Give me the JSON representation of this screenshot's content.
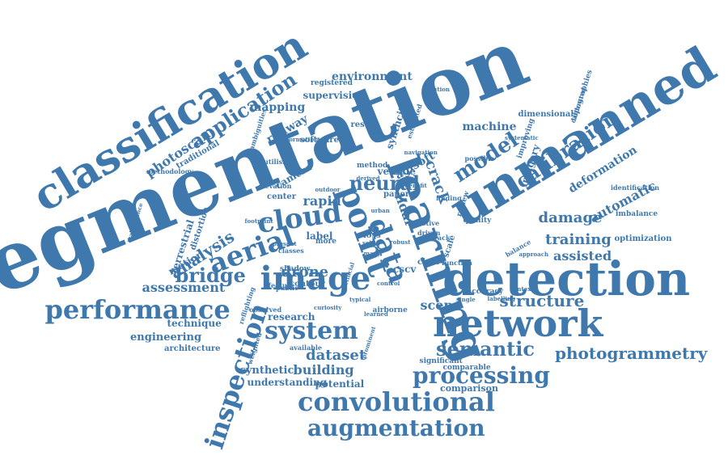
{
  "color": "#3f78ad",
  "words": [
    {
      "text": "segmentation",
      "r": -22
    },
    {
      "text": "classification",
      "r": -31
    },
    {
      "text": "unmanned",
      "r": -31
    },
    {
      "text": "detection",
      "r": 0
    },
    {
      "text": "learning",
      "r": 70
    },
    {
      "text": "network",
      "r": 0
    },
    {
      "text": "image",
      "r": 0
    },
    {
      "text": "cloud",
      "r": -8
    },
    {
      "text": "point",
      "r": 70
    },
    {
      "text": "aerial",
      "r": -20
    },
    {
      "text": "system",
      "r": 0
    },
    {
      "text": "inspection",
      "r": -72
    },
    {
      "text": "data",
      "r": 70
    },
    {
      "text": "convolutional",
      "r": 0
    },
    {
      "text": "augmentation",
      "r": 0
    },
    {
      "text": "performance",
      "r": 0
    },
    {
      "text": "processing",
      "r": 0
    },
    {
      "text": "semantic",
      "r": 0
    },
    {
      "text": "photogrammetry",
      "r": 0
    },
    {
      "text": "bridge",
      "r": 0
    },
    {
      "text": "application",
      "r": -33
    },
    {
      "text": "neural",
      "r": 0
    },
    {
      "text": "model",
      "r": -33
    },
    {
      "text": "calibration",
      "r": -35
    },
    {
      "text": "structure",
      "r": 0
    },
    {
      "text": "training",
      "r": 0
    },
    {
      "text": "drone",
      "r": 0
    },
    {
      "text": "dataset",
      "r": 0
    },
    {
      "text": "analysis",
      "r": -33
    },
    {
      "text": "assessment",
      "r": 0
    },
    {
      "text": "building",
      "r": 0
    },
    {
      "text": "damage",
      "r": 0
    },
    {
      "text": "assisted",
      "r": 0
    },
    {
      "text": "automatic",
      "r": -28
    },
    {
      "text": "photoscan",
      "r": -34
    },
    {
      "text": "environment",
      "r": 0
    },
    {
      "text": "mapping",
      "r": 0
    },
    {
      "text": "supervision",
      "r": 0
    },
    {
      "text": "machine",
      "r": 0
    },
    {
      "text": "agisoft",
      "r": -30
    },
    {
      "text": "scene",
      "r": 0
    },
    {
      "text": "rapid",
      "r": 0
    },
    {
      "text": "technique",
      "r": 0
    },
    {
      "text": "engineering",
      "r": 0
    },
    {
      "text": "synthetic",
      "r": 0
    },
    {
      "text": "understanding",
      "r": 0
    },
    {
      "text": "potential",
      "r": 0
    },
    {
      "text": "comparison",
      "r": 0
    },
    {
      "text": "architecture",
      "r": 0
    },
    {
      "text": "deformation",
      "r": -32
    },
    {
      "text": "crack",
      "r": 70
    },
    {
      "text": "lidar",
      "r": 70
    },
    {
      "text": "research",
      "r": 0
    },
    {
      "text": "motion",
      "r": -30
    },
    {
      "text": "railway",
      "r": -30
    },
    {
      "text": "terrestrial",
      "r": -72
    },
    {
      "text": "optimization",
      "r": 0
    },
    {
      "text": "imbalance",
      "r": 0
    },
    {
      "text": "dimensional",
      "r": 0
    },
    {
      "text": "imagery",
      "r": -72
    },
    {
      "text": "camera",
      "r": -30
    },
    {
      "text": "vehicle",
      "r": 0
    },
    {
      "text": "paper",
      "r": 0
    },
    {
      "text": "label",
      "r": 0
    },
    {
      "text": "result",
      "r": 0
    },
    {
      "text": "software",
      "r": 0
    },
    {
      "text": "loss",
      "r": 0
    },
    {
      "text": "class",
      "r": 0
    },
    {
      "text": "cscv",
      "r": 0
    },
    {
      "text": "shadow",
      "r": 0
    },
    {
      "text": "contour",
      "r": 0
    },
    {
      "text": "more",
      "r": 0
    },
    {
      "text": "available",
      "r": 0
    },
    {
      "text": "significant",
      "r": 0
    },
    {
      "text": "comparable",
      "r": 0
    },
    {
      "text": "airborne",
      "r": 0
    },
    {
      "text": "learned",
      "r": 0
    },
    {
      "text": "curiosity",
      "r": 0
    },
    {
      "text": "present",
      "r": 0
    },
    {
      "text": "center",
      "r": 0
    },
    {
      "text": "method",
      "r": 0
    },
    {
      "text": "distortion",
      "r": -72
    },
    {
      "text": "traditional",
      "r": -30
    },
    {
      "text": "synthcity",
      "r": -72
    },
    {
      "text": "registered",
      "r": 0
    },
    {
      "text": "scale",
      "r": -72
    },
    {
      "text": "review",
      "r": -72
    },
    {
      "text": "topographies",
      "r": -72
    },
    {
      "text": "improving",
      "r": -72
    },
    {
      "text": "calibrated",
      "r": -72
    },
    {
      "text": "identification",
      "r": 0
    },
    {
      "text": "methodology",
      "r": 0
    },
    {
      "text": "maintenance",
      "r": -72
    },
    {
      "text": "ambiguities",
      "r": -72
    },
    {
      "text": "information",
      "r": 0
    },
    {
      "text": "systematic",
      "r": 0
    },
    {
      "text": "estimated",
      "r": -72
    },
    {
      "text": "utilising",
      "r": 0
    },
    {
      "text": "outdoor",
      "r": 0
    },
    {
      "text": "derived",
      "r": 0
    },
    {
      "text": "navigation",
      "r": 0
    },
    {
      "text": "accuracy",
      "r": 0
    },
    {
      "text": "labelling",
      "r": 0
    },
    {
      "text": "balance",
      "r": -30
    },
    {
      "text": "approach",
      "r": 0
    },
    {
      "text": "context",
      "r": 0
    },
    {
      "text": "reflighting",
      "r": -72
    },
    {
      "text": "weighted",
      "r": -72
    },
    {
      "text": "prominent",
      "r": -72
    },
    {
      "text": "active",
      "r": 0
    },
    {
      "text": "driven",
      "r": 0
    },
    {
      "text": "quality",
      "r": 0
    },
    {
      "text": "self",
      "r": 0
    },
    {
      "text": "public",
      "r": 0
    },
    {
      "text": "single",
      "r": 0
    },
    {
      "text": "elevation",
      "r": 0
    },
    {
      "text": "observed",
      "r": 0
    },
    {
      "text": "classes",
      "r": 0
    },
    {
      "text": "feature",
      "r": 0
    },
    {
      "text": "robust",
      "r": 0
    },
    {
      "text": "benefit",
      "r": 0
    },
    {
      "text": "finding",
      "r": 0
    },
    {
      "text": "footprint",
      "r": 0
    },
    {
      "text": "artificial",
      "r": -72
    },
    {
      "text": "control",
      "r": 0
    },
    {
      "text": "function",
      "r": 0
    },
    {
      "text": "typical",
      "r": 0
    },
    {
      "text": "solution",
      "r": 0
    },
    {
      "text": "urban",
      "r": 0
    },
    {
      "text": "many",
      "r": 0
    },
    {
      "text": "track",
      "r": 0
    },
    {
      "text": "possible",
      "r": 0
    }
  ]
}
